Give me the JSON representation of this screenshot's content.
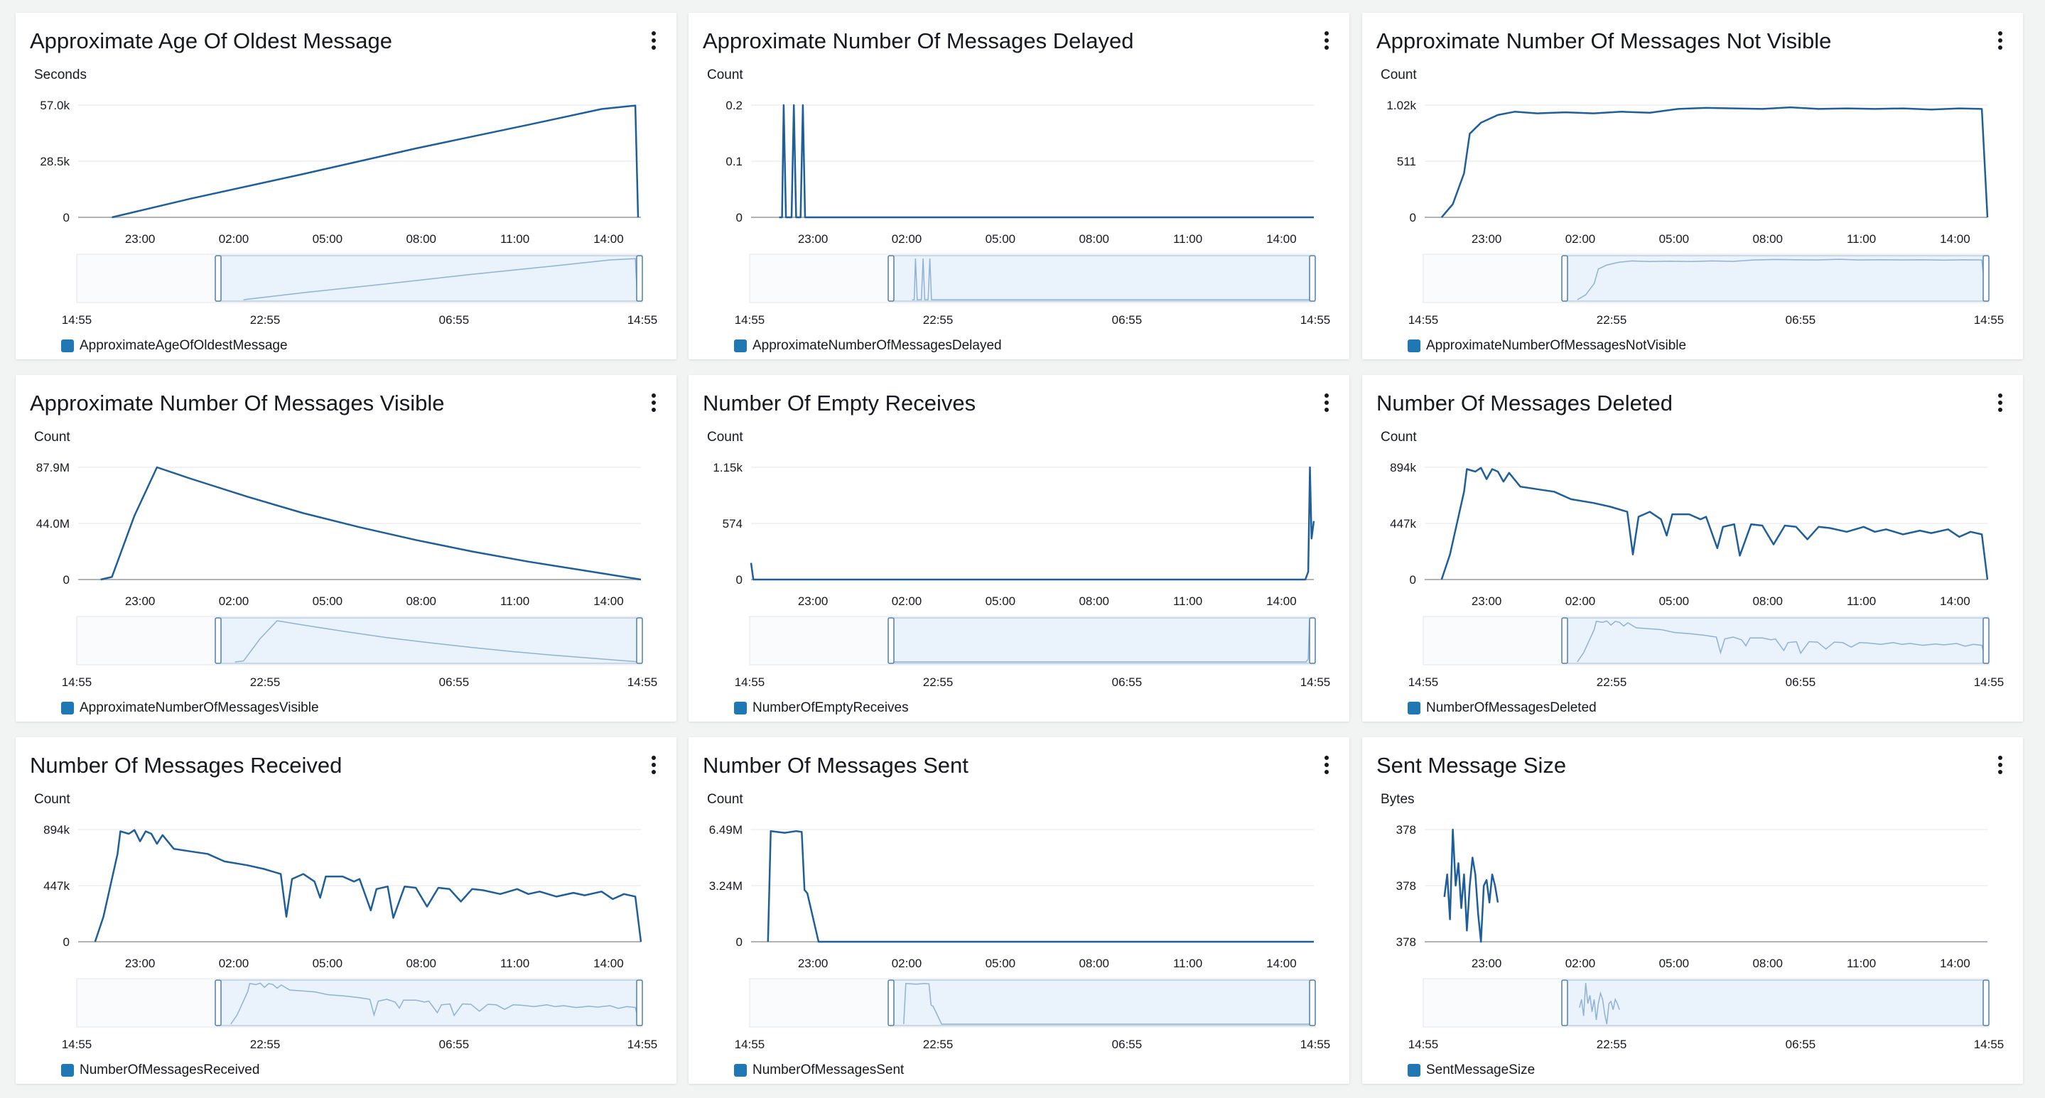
{
  "chart_data": [
    {
      "type": "line",
      "title": "Approximate Age Of Oldest Message",
      "ylabel": "Seconds",
      "yticks": [
        "0",
        "28.5k",
        "57.0k"
      ],
      "ylim": [
        0,
        57000
      ],
      "xlim": [
        "14:55",
        "14:55"
      ],
      "xticks": [
        "23:00",
        "02:00",
        "05:00",
        "08:00",
        "11:00",
        "14:00"
      ],
      "navigator_ticks": [
        "14:55",
        "22:55",
        "06:55",
        "14:55"
      ],
      "legend": [
        "ApproximateAgeOfOldestMessage"
      ],
      "series": [
        {
          "name": "ApproximateAgeOfOldestMessage",
          "points": [
            [
              0.06,
              0
            ],
            [
              0.2,
              9500
            ],
            [
              0.4,
              22000
            ],
            [
              0.6,
              35000
            ],
            [
              0.8,
              47000
            ],
            [
              0.93,
              55000
            ],
            [
              0.99,
              56800
            ],
            [
              0.995,
              0
            ]
          ]
        }
      ]
    },
    {
      "type": "line",
      "title": "Approximate Number Of Messages Delayed",
      "ylabel": "Count",
      "yticks": [
        "0",
        "0.1",
        "0.2"
      ],
      "ylim": [
        0,
        0.2
      ],
      "xlim": [
        "14:55",
        "14:55"
      ],
      "xticks": [
        "23:00",
        "02:00",
        "05:00",
        "08:00",
        "11:00",
        "14:00"
      ],
      "navigator_ticks": [
        "14:55",
        "22:55",
        "06:55",
        "14:55"
      ],
      "legend": [
        "ApproximateNumberOfMessagesDelayed"
      ],
      "series": [
        {
          "name": "ApproximateNumberOfMessagesDelayed",
          "points": [
            [
              0.05,
              0
            ],
            [
              0.055,
              0
            ],
            [
              0.058,
              0.2
            ],
            [
              0.062,
              0
            ],
            [
              0.072,
              0
            ],
            [
              0.076,
              0.2
            ],
            [
              0.08,
              0
            ],
            [
              0.088,
              0
            ],
            [
              0.092,
              0.2
            ],
            [
              0.096,
              0
            ],
            [
              1,
              0
            ]
          ]
        }
      ]
    },
    {
      "type": "line",
      "title": "Approximate Number Of Messages Not Visible",
      "ylabel": "Count",
      "yticks": [
        "0",
        "511",
        "1.02k"
      ],
      "ylim": [
        0,
        1020
      ],
      "xlim": [
        "14:55",
        "14:55"
      ],
      "xticks": [
        "23:00",
        "02:00",
        "05:00",
        "08:00",
        "11:00",
        "14:00"
      ],
      "navigator_ticks": [
        "14:55",
        "22:55",
        "06:55",
        "14:55"
      ],
      "legend": [
        "ApproximateNumberOfMessagesNotVisible"
      ],
      "series": [
        {
          "name": "ApproximateNumberOfMessagesNotVisible",
          "points": [
            [
              0.03,
              0
            ],
            [
              0.05,
              120
            ],
            [
              0.07,
              400
            ],
            [
              0.08,
              760
            ],
            [
              0.1,
              860
            ],
            [
              0.13,
              930
            ],
            [
              0.16,
              960
            ],
            [
              0.2,
              945
            ],
            [
              0.25,
              955
            ],
            [
              0.3,
              945
            ],
            [
              0.35,
              960
            ],
            [
              0.4,
              950
            ],
            [
              0.45,
              985
            ],
            [
              0.5,
              995
            ],
            [
              0.55,
              990
            ],
            [
              0.6,
              985
            ],
            [
              0.65,
              1000
            ],
            [
              0.7,
              985
            ],
            [
              0.75,
              990
            ],
            [
              0.8,
              985
            ],
            [
              0.85,
              990
            ],
            [
              0.9,
              980
            ],
            [
              0.95,
              990
            ],
            [
              0.99,
              985
            ],
            [
              1.0,
              0
            ]
          ]
        }
      ]
    },
    {
      "type": "line",
      "title": "Approximate Number Of Messages Visible",
      "ylabel": "Count",
      "yticks": [
        "0",
        "44.0M",
        "87.9M"
      ],
      "ylim": [
        0,
        87900000
      ],
      "xlim": [
        "14:55",
        "14:55"
      ],
      "xticks": [
        "23:00",
        "02:00",
        "05:00",
        "08:00",
        "11:00",
        "14:00"
      ],
      "navigator_ticks": [
        "14:55",
        "22:55",
        "06:55",
        "14:55"
      ],
      "legend": [
        "ApproximateNumberOfMessagesVisible"
      ],
      "series": [
        {
          "name": "ApproximateNumberOfMessagesVisible",
          "points": [
            [
              0.04,
              0
            ],
            [
              0.06,
              2000000
            ],
            [
              0.1,
              50000000
            ],
            [
              0.14,
              87900000
            ],
            [
              0.2,
              79000000
            ],
            [
              0.3,
              65000000
            ],
            [
              0.4,
              52000000
            ],
            [
              0.5,
              41000000
            ],
            [
              0.6,
              31000000
            ],
            [
              0.7,
              22000000
            ],
            [
              0.8,
              14000000
            ],
            [
              0.9,
              7000000
            ],
            [
              1.0,
              0
            ]
          ]
        }
      ]
    },
    {
      "type": "line",
      "title": "Number Of Empty Receives",
      "ylabel": "Count",
      "yticks": [
        "0",
        "574",
        "1.15k"
      ],
      "ylim": [
        0,
        1150
      ],
      "xlim": [
        "14:55",
        "14:55"
      ],
      "xticks": [
        "23:00",
        "02:00",
        "05:00",
        "08:00",
        "11:00",
        "14:00"
      ],
      "navigator_ticks": [
        "14:55",
        "22:55",
        "06:55",
        "14:55"
      ],
      "legend": [
        "NumberOfEmptyReceives"
      ],
      "series": [
        {
          "name": "NumberOfEmptyReceives",
          "points": [
            [
              0.0,
              170
            ],
            [
              0.004,
              0
            ],
            [
              0.985,
              0
            ],
            [
              0.99,
              80
            ],
            [
              0.993,
              1150
            ],
            [
              0.996,
              420
            ],
            [
              1.0,
              600
            ]
          ]
        }
      ]
    },
    {
      "type": "line",
      "title": "Number Of Messages Deleted",
      "ylabel": "Count",
      "yticks": [
        "0",
        "447k",
        "894k"
      ],
      "ylim": [
        0,
        894000
      ],
      "xlim": [
        "14:55",
        "14:55"
      ],
      "xticks": [
        "23:00",
        "02:00",
        "05:00",
        "08:00",
        "11:00",
        "14:00"
      ],
      "navigator_ticks": [
        "14:55",
        "22:55",
        "06:55",
        "14:55"
      ],
      "legend": [
        "NumberOfMessagesDeleted"
      ],
      "series": [
        {
          "name": "NumberOfMessagesDeleted",
          "points": [
            [
              0.03,
              0
            ],
            [
              0.045,
              200000
            ],
            [
              0.07,
              700000
            ],
            [
              0.075,
              880000
            ],
            [
              0.09,
              860000
            ],
            [
              0.1,
              890000
            ],
            [
              0.11,
              800000
            ],
            [
              0.12,
              880000
            ],
            [
              0.13,
              860000
            ],
            [
              0.14,
              780000
            ],
            [
              0.15,
              850000
            ],
            [
              0.17,
              740000
            ],
            [
              0.2,
              720000
            ],
            [
              0.23,
              700000
            ],
            [
              0.26,
              640000
            ],
            [
              0.3,
              610000
            ],
            [
              0.33,
              580000
            ],
            [
              0.36,
              540000
            ],
            [
              0.37,
              200000
            ],
            [
              0.38,
              500000
            ],
            [
              0.4,
              540000
            ],
            [
              0.42,
              480000
            ],
            [
              0.43,
              350000
            ],
            [
              0.44,
              520000
            ],
            [
              0.47,
              520000
            ],
            [
              0.49,
              480000
            ],
            [
              0.5,
              500000
            ],
            [
              0.52,
              250000
            ],
            [
              0.53,
              420000
            ],
            [
              0.55,
              440000
            ],
            [
              0.56,
              190000
            ],
            [
              0.58,
              440000
            ],
            [
              0.6,
              430000
            ],
            [
              0.62,
              280000
            ],
            [
              0.64,
              430000
            ],
            [
              0.66,
              420000
            ],
            [
              0.68,
              320000
            ],
            [
              0.7,
              420000
            ],
            [
              0.72,
              410000
            ],
            [
              0.75,
              380000
            ],
            [
              0.78,
              420000
            ],
            [
              0.8,
              380000
            ],
            [
              0.82,
              400000
            ],
            [
              0.85,
              360000
            ],
            [
              0.88,
              390000
            ],
            [
              0.9,
              370000
            ],
            [
              0.93,
              400000
            ],
            [
              0.95,
              340000
            ],
            [
              0.97,
              380000
            ],
            [
              0.99,
              360000
            ],
            [
              1.0,
              0
            ]
          ]
        }
      ]
    },
    {
      "type": "line",
      "title": "Number Of Messages Received",
      "ylabel": "Count",
      "yticks": [
        "0",
        "447k",
        "894k"
      ],
      "ylim": [
        0,
        894000
      ],
      "xlim": [
        "14:55",
        "14:55"
      ],
      "xticks": [
        "23:00",
        "02:00",
        "05:00",
        "08:00",
        "11:00",
        "14:00"
      ],
      "navigator_ticks": [
        "14:55",
        "22:55",
        "06:55",
        "14:55"
      ],
      "legend": [
        "NumberOfMessagesReceived"
      ],
      "series": [
        {
          "name": "NumberOfMessagesReceived",
          "points": [
            [
              0.03,
              0
            ],
            [
              0.045,
              200000
            ],
            [
              0.07,
              700000
            ],
            [
              0.075,
              880000
            ],
            [
              0.09,
              860000
            ],
            [
              0.1,
              890000
            ],
            [
              0.11,
              800000
            ],
            [
              0.12,
              880000
            ],
            [
              0.13,
              860000
            ],
            [
              0.14,
              780000
            ],
            [
              0.15,
              850000
            ],
            [
              0.17,
              740000
            ],
            [
              0.2,
              720000
            ],
            [
              0.23,
              700000
            ],
            [
              0.26,
              640000
            ],
            [
              0.3,
              610000
            ],
            [
              0.33,
              580000
            ],
            [
              0.36,
              540000
            ],
            [
              0.37,
              200000
            ],
            [
              0.38,
              500000
            ],
            [
              0.4,
              540000
            ],
            [
              0.42,
              480000
            ],
            [
              0.43,
              350000
            ],
            [
              0.44,
              520000
            ],
            [
              0.47,
              520000
            ],
            [
              0.49,
              480000
            ],
            [
              0.5,
              500000
            ],
            [
              0.52,
              250000
            ],
            [
              0.53,
              420000
            ],
            [
              0.55,
              440000
            ],
            [
              0.56,
              190000
            ],
            [
              0.58,
              440000
            ],
            [
              0.6,
              430000
            ],
            [
              0.62,
              280000
            ],
            [
              0.64,
              430000
            ],
            [
              0.66,
              420000
            ],
            [
              0.68,
              320000
            ],
            [
              0.7,
              420000
            ],
            [
              0.72,
              410000
            ],
            [
              0.75,
              380000
            ],
            [
              0.78,
              420000
            ],
            [
              0.8,
              380000
            ],
            [
              0.82,
              400000
            ],
            [
              0.85,
              360000
            ],
            [
              0.88,
              390000
            ],
            [
              0.9,
              370000
            ],
            [
              0.93,
              400000
            ],
            [
              0.95,
              340000
            ],
            [
              0.97,
              380000
            ],
            [
              0.99,
              360000
            ],
            [
              1.0,
              0
            ]
          ]
        }
      ]
    },
    {
      "type": "line",
      "title": "Number Of Messages Sent",
      "ylabel": "Count",
      "yticks": [
        "0",
        "3.24M",
        "6.49M"
      ],
      "ylim": [
        0,
        6490000
      ],
      "xlim": [
        "14:55",
        "14:55"
      ],
      "xticks": [
        "23:00",
        "02:00",
        "05:00",
        "08:00",
        "11:00",
        "14:00"
      ],
      "navigator_ticks": [
        "14:55",
        "22:55",
        "06:55",
        "14:55"
      ],
      "legend": [
        "NumberOfMessagesSent"
      ],
      "series": [
        {
          "name": "NumberOfMessagesSent",
          "points": [
            [
              0.03,
              0
            ],
            [
              0.035,
              6400000
            ],
            [
              0.06,
              6300000
            ],
            [
              0.08,
              6400000
            ],
            [
              0.09,
              6350000
            ],
            [
              0.095,
              3000000
            ],
            [
              0.1,
              2800000
            ],
            [
              0.12,
              0
            ],
            [
              1.0,
              0
            ]
          ]
        }
      ]
    },
    {
      "type": "line",
      "title": "Sent Message Size",
      "ylabel": "Bytes",
      "yticks": [
        "378",
        "378",
        "378"
      ],
      "ylim": [
        0,
        1
      ],
      "xlim": [
        "14:55",
        "14:55"
      ],
      "xticks": [
        "23:00",
        "02:00",
        "05:00",
        "08:00",
        "11:00",
        "14:00"
      ],
      "navigator_ticks": [
        "14:55",
        "22:55",
        "06:55",
        "14:55"
      ],
      "legend": [
        "SentMessageSize"
      ],
      "series": [
        {
          "name": "SentMessageSize",
          "points": [
            [
              0.035,
              0.4
            ],
            [
              0.04,
              0.6
            ],
            [
              0.045,
              0.2
            ],
            [
              0.05,
              1.0
            ],
            [
              0.055,
              0.5
            ],
            [
              0.06,
              0.7
            ],
            [
              0.065,
              0.3
            ],
            [
              0.07,
              0.6
            ],
            [
              0.075,
              0.1
            ],
            [
              0.08,
              0.5
            ],
            [
              0.085,
              0.75
            ],
            [
              0.09,
              0.6
            ],
            [
              0.095,
              0.25
            ],
            [
              0.1,
              0.0
            ],
            [
              0.105,
              0.5
            ],
            [
              0.11,
              0.55
            ],
            [
              0.115,
              0.35
            ],
            [
              0.12,
              0.6
            ],
            [
              0.125,
              0.5
            ],
            [
              0.13,
              0.35
            ]
          ]
        }
      ]
    }
  ]
}
